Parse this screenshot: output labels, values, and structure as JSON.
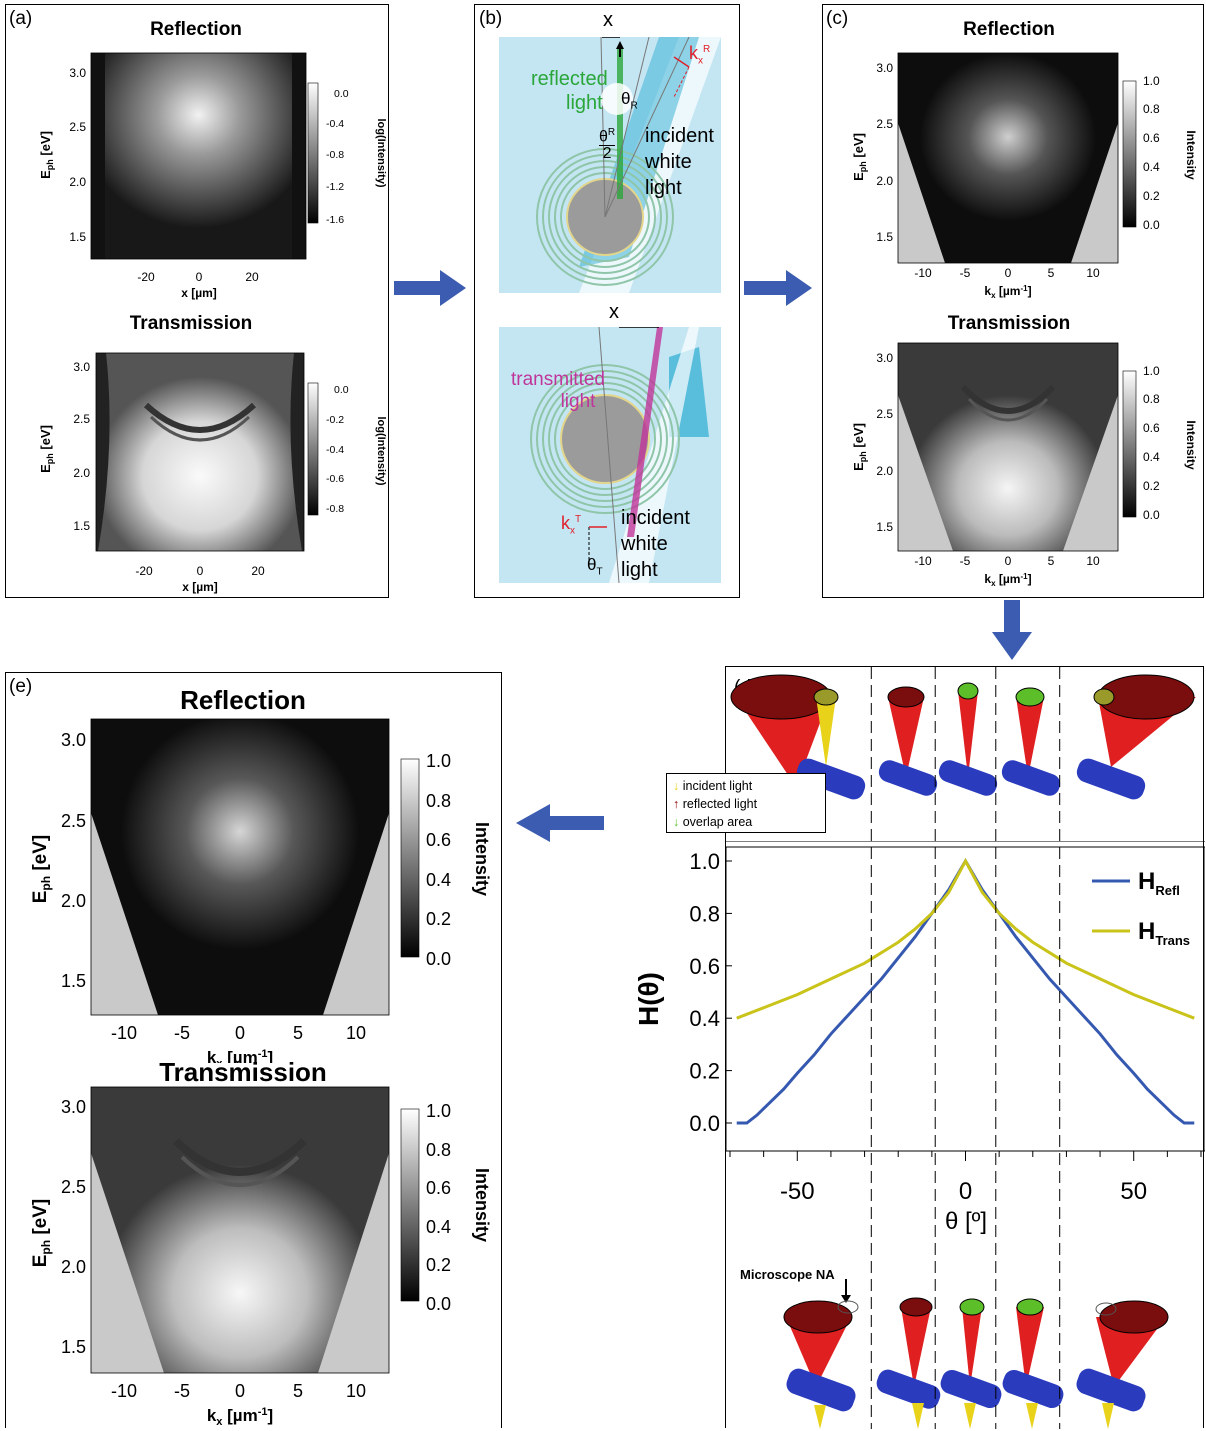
{
  "panels": {
    "a": {
      "label": "(a)",
      "reflection": {
        "title": "Reflection",
        "ylabel_main": "E",
        "ylabel_sub": "ph",
        "ylabel_unit": " [eV]",
        "xlabel": "x [µm]",
        "yticks": [
          "3.0",
          "2.5",
          "2.0",
          "1.5"
        ],
        "xticks": [
          "-20",
          "0",
          "20"
        ],
        "cbar_label": "log(Intensity)",
        "cbar_ticks": [
          "0.0",
          "-0.4",
          "-0.8",
          "-1.2",
          "-1.6"
        ]
      },
      "transmission": {
        "title": "Transmission",
        "ylabel_main": "E",
        "ylabel_sub": "ph",
        "ylabel_unit": " [eV]",
        "xlabel": "x [µm]",
        "yticks": [
          "3.0",
          "2.5",
          "2.0",
          "1.5"
        ],
        "xticks": [
          "-20",
          "0",
          "20"
        ],
        "cbar_label": "log(Intensity)",
        "cbar_ticks": [
          "0.0",
          "-0.2",
          "-0.4",
          "-0.6",
          "-0.8"
        ]
      }
    },
    "b": {
      "label": "(b)",
      "top": {
        "x_label": "x",
        "reflected": "reflected",
        "light": "light",
        "theta_r": "θ",
        "theta_r_sub": "R",
        "half_theta": "θ",
        "half_theta_sub": "R",
        "half_den": "2",
        "k_label": "k",
        "k_sub": "x",
        "k_sup": "R",
        "incident_1": "incident",
        "incident_2": "white",
        "incident_3": "light"
      },
      "bottom": {
        "x_label": "x",
        "transmitted_1": "transmitted",
        "transmitted_2": "light",
        "k_label": "k",
        "k_sub": "x",
        "k_sup": "T",
        "theta_t": "θ",
        "theta_t_sub": "T",
        "incident_1": "incident",
        "incident_2": "white",
        "incident_3": "light"
      }
    },
    "c": {
      "label": "(c)",
      "reflection": {
        "title": "Reflection",
        "ylabel_main": "E",
        "ylabel_sub": "ph",
        "ylabel_unit": " [eV]",
        "xlabel_main": "k",
        "xlabel_sub": "x",
        "xlabel_unit": " [µm",
        "xlabel_exp": "-1",
        "xlabel_close": "]",
        "yticks": [
          "3.0",
          "2.5",
          "2.0",
          "1.5"
        ],
        "xticks": [
          "-10",
          "-5",
          "0",
          "5",
          "10"
        ],
        "cbar_label": "Intensity",
        "cbar_ticks": [
          "1.0",
          "0.8",
          "0.6",
          "0.4",
          "0.2",
          "0.0"
        ]
      },
      "transmission": {
        "title": "Transmission",
        "ylabel_main": "E",
        "ylabel_sub": "ph",
        "ylabel_unit": " [eV]",
        "xlabel_main": "k",
        "xlabel_sub": "x",
        "xlabel_unit": " [µm",
        "xlabel_exp": "-1",
        "xlabel_close": "]",
        "yticks": [
          "3.0",
          "2.5",
          "2.0",
          "1.5"
        ],
        "xticks": [
          "-10",
          "-5",
          "0",
          "5",
          "10"
        ],
        "cbar_label": "Intensity",
        "cbar_ticks": [
          "1.0",
          "0.8",
          "0.6",
          "0.4",
          "0.2",
          "0.0"
        ]
      }
    },
    "d": {
      "label": "(d)",
      "legend_top": [
        "incident light",
        "reflected light",
        "overlap area"
      ],
      "legend_top_colors": [
        "#e8d21a",
        "#8b0000",
        "#5cbf2a"
      ],
      "ylabel": "H(θ)",
      "xlabel": "θ [º]",
      "microscope_label": "Microscope NA",
      "series_labels": [
        {
          "main": "H",
          "sub": "Refl"
        },
        {
          "main": "H",
          "sub": "Trans"
        }
      ]
    },
    "e": {
      "label": "(e)",
      "reflection": {
        "title": "Reflection",
        "ylabel_main": "E",
        "ylabel_sub": "ph",
        "ylabel_unit": " [eV]",
        "xlabel_main": "k",
        "xlabel_sub": "x",
        "xlabel_unit": " [µm",
        "xlabel_exp": "-1",
        "xlabel_close": "]",
        "yticks": [
          "3.0",
          "2.5",
          "2.0",
          "1.5"
        ],
        "xticks": [
          "-10",
          "-5",
          "0",
          "5",
          "10"
        ],
        "cbar_label": "Intensity",
        "cbar_ticks": [
          "1.0",
          "0.8",
          "0.6",
          "0.4",
          "0.2",
          "0.0"
        ]
      },
      "transmission": {
        "title": "Transmission",
        "ylabel_main": "E",
        "ylabel_sub": "ph",
        "ylabel_unit": " [eV]",
        "xlabel_main": "k",
        "xlabel_sub": "x",
        "xlabel_unit": " [µm",
        "xlabel_exp": "-1",
        "xlabel_close": "]",
        "yticks": [
          "3.0",
          "2.5",
          "2.0",
          "1.5"
        ],
        "xticks": [
          "-10",
          "-5",
          "0",
          "5",
          "10"
        ],
        "cbar_label": "Intensity",
        "cbar_ticks": [
          "1.0",
          "0.8",
          "0.6",
          "0.4",
          "0.2",
          "0.0"
        ]
      }
    }
  },
  "colors": {
    "arrow": "#3b5cb0",
    "h_refl": "#3558b0",
    "h_trans": "#c9c31a",
    "panel_bg_b": "#c4e6f3",
    "k_red": "#e0202a",
    "reflected_green": "#2aa63a",
    "transmitted_magenta": "#c0359a"
  },
  "chart_data": {
    "type": "line",
    "xlabel": "θ [º]",
    "ylabel": "H(θ)",
    "xlim": [
      -70,
      70
    ],
    "ylim": [
      0.0,
      1.0
    ],
    "xticks": [
      -50,
      0,
      50
    ],
    "yticks": [
      0.0,
      0.2,
      0.4,
      0.6,
      0.8,
      1.0
    ],
    "vlines": [
      -28,
      -9,
      9,
      28
    ],
    "series": [
      {
        "name": "H_Refl",
        "color": "#3558b0",
        "x": [
          -68,
          -65,
          -62,
          -58,
          -54,
          -50,
          -45,
          -40,
          -35,
          -30,
          -25,
          -20,
          -15,
          -10,
          -5,
          0,
          5,
          10,
          15,
          20,
          25,
          30,
          35,
          40,
          45,
          50,
          54,
          58,
          62,
          65,
          68
        ],
        "y": [
          0.0,
          0.0,
          0.03,
          0.08,
          0.13,
          0.19,
          0.26,
          0.34,
          0.41,
          0.48,
          0.55,
          0.63,
          0.71,
          0.8,
          0.89,
          1.0,
          0.89,
          0.8,
          0.71,
          0.63,
          0.55,
          0.48,
          0.41,
          0.34,
          0.26,
          0.19,
          0.13,
          0.08,
          0.03,
          0.0,
          0.0
        ]
      },
      {
        "name": "H_Trans",
        "color": "#c9c31a",
        "x": [
          -68,
          -60,
          -50,
          -40,
          -30,
          -25,
          -20,
          -15,
          -10,
          -5,
          0,
          5,
          10,
          15,
          20,
          25,
          30,
          40,
          50,
          60,
          68
        ],
        "y": [
          0.4,
          0.44,
          0.49,
          0.55,
          0.61,
          0.65,
          0.69,
          0.74,
          0.8,
          0.88,
          1.0,
          0.88,
          0.8,
          0.74,
          0.69,
          0.65,
          0.61,
          0.55,
          0.49,
          0.44,
          0.4
        ]
      }
    ]
  }
}
